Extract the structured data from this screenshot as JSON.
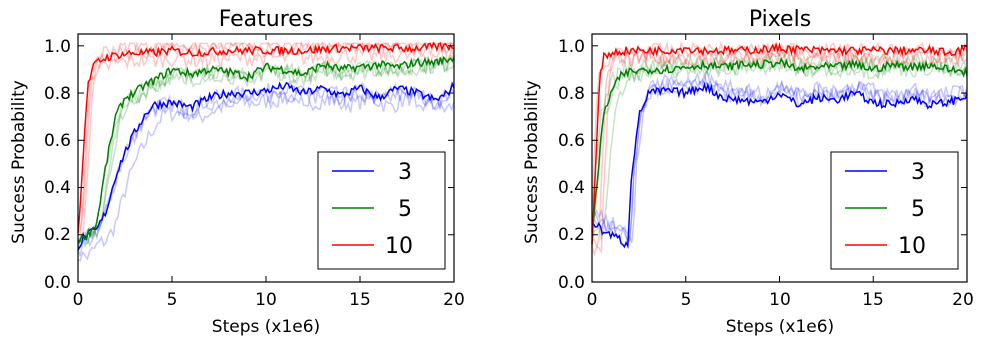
{
  "chart_data": [
    {
      "type": "line",
      "title": "Features",
      "xlabel": "Steps (x1e6)",
      "ylabel": "Success Probability",
      "xlim": [
        0,
        20
      ],
      "ylim": [
        0.0,
        1.05
      ],
      "xticks": [
        0,
        5,
        10,
        15,
        20
      ],
      "yticks": [
        0.0,
        0.2,
        0.4,
        0.6,
        0.8,
        1.0
      ],
      "ytick_labels": [
        "0.0",
        "0.2",
        "0.4",
        "0.6",
        "0.8",
        "1.0"
      ],
      "grid": false,
      "legend_position": "lower-right",
      "series": [
        {
          "name": "3",
          "color": "#0000ff",
          "x": [
            0,
            0.5,
            1,
            1.5,
            2,
            2.5,
            3,
            3.5,
            4,
            5,
            6,
            7,
            8,
            9,
            10,
            11,
            12,
            13,
            14,
            15,
            16,
            17,
            18,
            19,
            19.5,
            20
          ],
          "y": [
            0.15,
            0.2,
            0.22,
            0.3,
            0.45,
            0.55,
            0.63,
            0.7,
            0.75,
            0.76,
            0.74,
            0.78,
            0.8,
            0.8,
            0.81,
            0.83,
            0.8,
            0.82,
            0.79,
            0.82,
            0.78,
            0.82,
            0.8,
            0.77,
            0.79,
            0.83
          ]
        },
        {
          "name": "5",
          "color": "#008000",
          "x": [
            0,
            0.5,
            1,
            1.5,
            2,
            2.5,
            3,
            3.5,
            4,
            5,
            6,
            7,
            8,
            9,
            10,
            11,
            12,
            13,
            14,
            15,
            16,
            17,
            18,
            19,
            20
          ],
          "y": [
            0.18,
            0.2,
            0.25,
            0.5,
            0.7,
            0.78,
            0.8,
            0.83,
            0.85,
            0.9,
            0.88,
            0.9,
            0.89,
            0.87,
            0.91,
            0.9,
            0.88,
            0.92,
            0.9,
            0.91,
            0.92,
            0.91,
            0.93,
            0.93,
            0.95
          ]
        },
        {
          "name": "10",
          "color": "#ff0000",
          "x": [
            0,
            0.25,
            0.5,
            0.75,
            1,
            1.5,
            2,
            3,
            4,
            5,
            6,
            8,
            10,
            12,
            14,
            16,
            18,
            20
          ],
          "y": [
            0.2,
            0.5,
            0.82,
            0.9,
            0.93,
            0.95,
            0.96,
            0.97,
            0.97,
            0.98,
            0.97,
            0.98,
            0.98,
            0.98,
            0.99,
            0.99,
            0.99,
            1.0
          ]
        }
      ]
    },
    {
      "type": "line",
      "title": "Pixels",
      "xlabel": "Steps (x1e6)",
      "ylabel": "Success Probability",
      "xlim": [
        0,
        20
      ],
      "ylim": [
        0.0,
        1.05
      ],
      "xticks": [
        0,
        5,
        10,
        15,
        20
      ],
      "yticks": [
        0.0,
        0.2,
        0.4,
        0.6,
        0.8,
        1.0
      ],
      "ytick_labels": [
        "0.0",
        "0.2",
        "0.4",
        "0.6",
        "0.8",
        "1.0"
      ],
      "grid": false,
      "legend_position": "lower-right",
      "series": [
        {
          "name": "3",
          "color": "#0000ff",
          "x": [
            0,
            0.5,
            1,
            1.5,
            1.9,
            2.1,
            2.5,
            3,
            4,
            5,
            6,
            7,
            8,
            9,
            10,
            11,
            12,
            13,
            14,
            15,
            16,
            17,
            18,
            19,
            20
          ],
          "y": [
            0.26,
            0.22,
            0.2,
            0.18,
            0.15,
            0.45,
            0.7,
            0.8,
            0.81,
            0.8,
            0.83,
            0.78,
            0.77,
            0.76,
            0.8,
            0.75,
            0.78,
            0.77,
            0.8,
            0.76,
            0.75,
            0.78,
            0.75,
            0.76,
            0.79
          ]
        },
        {
          "name": "5",
          "color": "#008000",
          "x": [
            0,
            0.3,
            0.6,
            1,
            1.5,
            2,
            3,
            4,
            5,
            6,
            7,
            8,
            9,
            10,
            11,
            12,
            13,
            14,
            15,
            16,
            17,
            18,
            19,
            20
          ],
          "y": [
            0.2,
            0.45,
            0.7,
            0.8,
            0.87,
            0.89,
            0.9,
            0.9,
            0.91,
            0.92,
            0.91,
            0.92,
            0.92,
            0.93,
            0.9,
            0.91,
            0.91,
            0.92,
            0.9,
            0.92,
            0.91,
            0.92,
            0.9,
            0.89
          ]
        },
        {
          "name": "10",
          "color": "#ff0000",
          "x": [
            0,
            0.2,
            0.4,
            0.6,
            1,
            2,
            3,
            4,
            5,
            6,
            8,
            10,
            12,
            14,
            16,
            18,
            19,
            20
          ],
          "y": [
            0.15,
            0.5,
            0.85,
            0.95,
            0.97,
            0.98,
            0.98,
            0.98,
            0.99,
            0.98,
            0.98,
            0.99,
            0.98,
            0.98,
            0.98,
            0.98,
            0.97,
            0.99
          ]
        }
      ]
    }
  ]
}
